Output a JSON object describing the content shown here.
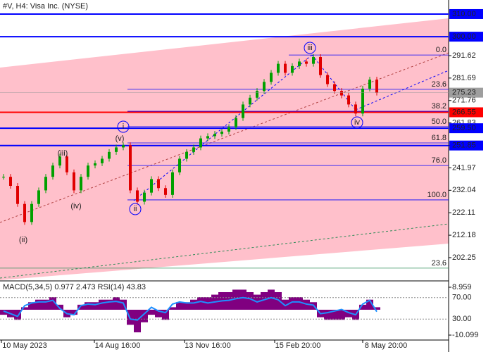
{
  "chart_data": {
    "type": "candlestick",
    "title": "#V, H4:  Visa Inc. (NYSE)",
    "ylim": [
      192.27,
      316.22
    ],
    "yticks": [
      291.62,
      281.69,
      271.76,
      261.83,
      251.9,
      241.97,
      232.04,
      222.11,
      212.18,
      202.25
    ],
    "current_price": {
      "value": 275.23,
      "label": "275.23"
    },
    "levels": [
      {
        "value": 310,
        "label": "310.00",
        "color": "#0000ff"
      },
      {
        "value": 300,
        "label": "300.00",
        "color": "#0000ff"
      },
      {
        "value": 266.55,
        "label": "266.55",
        "color": "#ff0000"
      },
      {
        "value": 259.5,
        "label": "259.50",
        "color": "#0000ff"
      },
      {
        "value": 251.85,
        "label": "251.85",
        "color": "#0000ff"
      }
    ],
    "fibonacci": [
      {
        "label": "0.0",
        "price": 291.9
      },
      {
        "label": "23.6",
        "price": 276.7
      },
      {
        "label": "38.2",
        "price": 267.0
      },
      {
        "label": "50.0",
        "price": 260.2
      },
      {
        "label": "61.8",
        "price": 253.0
      },
      {
        "label": "76.0",
        "price": 243.0
      },
      {
        "label": "100.0",
        "price": 227.8
      },
      {
        "label": "23.6",
        "price": 197.6
      }
    ],
    "waves": [
      "i",
      "ii",
      "iii",
      "iv",
      "(v)",
      "(iii)",
      "(iv)",
      "(ii)"
    ],
    "x_labels": [
      "10 May 2023",
      "14 Aug 16:00",
      "13 Nov 16:00",
      "15 Feb 20:00",
      "8 May 20:00"
    ],
    "closes": [
      238,
      234,
      226,
      218,
      226,
      232,
      238,
      243,
      247,
      240,
      232,
      238,
      243,
      244,
      246,
      249,
      251,
      252,
      232,
      227,
      231,
      237,
      233,
      230,
      240,
      246,
      249,
      251,
      255,
      256,
      257,
      258,
      260,
      264,
      270,
      273,
      276,
      280,
      284,
      288,
      284,
      287,
      289,
      288,
      291,
      283,
      279,
      276,
      274,
      270,
      266,
      277,
      281,
      275.23
    ],
    "up_color": "#00a000",
    "down_color": "#e00000",
    "indicator": {
      "title": "MACD(5,34,5) 0.977 2.473 RSI(14) 43.83",
      "macd_lim": [
        -10.099,
        8.959
      ],
      "rsi_lim": [
        0,
        100
      ],
      "ticks": [
        8.959,
        {
          "value": 70,
          "label": "70.00"
        },
        {
          "value": 30,
          "label": "30.00"
        },
        -10.099
      ],
      "macd_hist": [
        -2,
        -3,
        -4,
        1,
        3,
        4,
        4,
        5,
        2,
        -3,
        -2,
        2,
        3,
        3,
        4,
        4,
        5,
        4,
        -6,
        -9,
        -5,
        -2,
        -3,
        -4,
        1,
        3,
        3,
        4,
        5,
        5,
        6,
        7,
        7,
        8,
        8,
        7,
        6,
        7,
        8,
        7,
        4,
        5,
        5,
        4,
        3,
        -3,
        -4,
        -4,
        -4,
        -3,
        -4,
        2,
        4,
        1
      ],
      "rsi": [
        45,
        40,
        35,
        55,
        60,
        62,
        62,
        65,
        50,
        40,
        38,
        55,
        58,
        57,
        60,
        62,
        63,
        60,
        30,
        28,
        40,
        52,
        45,
        42,
        58,
        62,
        60,
        60,
        63,
        60,
        62,
        64,
        65,
        68,
        70,
        68,
        62,
        66,
        70,
        66,
        55,
        62,
        62,
        58,
        56,
        40,
        42,
        45,
        48,
        42,
        38,
        58,
        65,
        43.83
      ],
      "macd_color": "#800080",
      "rsi_color": "#1e90ff"
    }
  }
}
